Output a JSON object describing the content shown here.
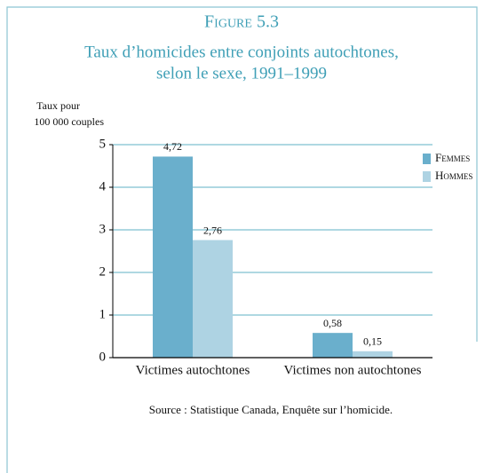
{
  "chart_data": {
    "type": "bar",
    "title": "Figure 5.3",
    "subtitle": [
      "Taux d’homicides entre conjoints autochtones,",
      "selon le sexe, 1991–1999"
    ],
    "ylabel": [
      "Taux pour",
      "100 000 couples"
    ],
    "categories": [
      "Victimes autochtones",
      "Victimes non autochtones"
    ],
    "series": [
      {
        "name": "Femmes",
        "color": "#6aafcc",
        "values": [
          4.72,
          0.58
        ],
        "value_labels": [
          "4,72",
          "0,58"
        ]
      },
      {
        "name": "Hommes",
        "color": "#aed3e3",
        "values": [
          2.76,
          0.15
        ],
        "value_labels": [
          "2,76",
          "0,15"
        ]
      }
    ],
    "ylim": [
      0,
      5
    ],
    "yticks": [
      0,
      1,
      2,
      3,
      4,
      5
    ],
    "grid": true,
    "legend": "upper right",
    "source": "Source : Statistique Canada, Enquête sur l’homicide."
  }
}
